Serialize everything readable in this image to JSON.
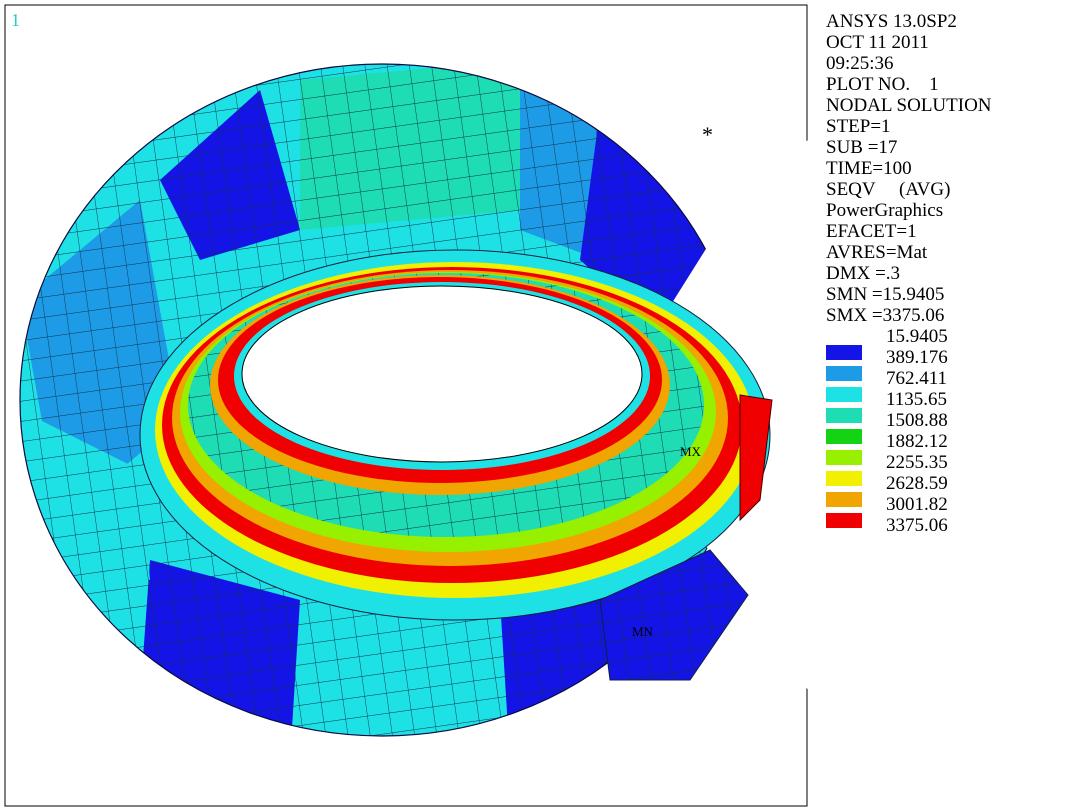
{
  "window": {
    "number": "1"
  },
  "info": [
    "ANSYS 13.0SP2",
    "OCT 11 2011",
    "09:25:36",
    "PLOT NO.    1",
    "NODAL SOLUTION",
    "STEP=1",
    "SUB =17",
    "TIME=100",
    "SEQV     (AVG)",
    "PowerGraphics",
    "EFACET=1",
    "AVRES=Mat",
    "DMX =.3",
    "SMN =15.9405",
    "SMX =3375.06"
  ],
  "legend": [
    {
      "label": "15.9405",
      "color": "#1414e6"
    },
    {
      "label": "389.176",
      "color": "#1e9be6"
    },
    {
      "label": "762.411",
      "color": "#1ee1e6"
    },
    {
      "label": "1135.65",
      "color": "#1edcb4"
    },
    {
      "label": "1508.88",
      "color": "#14d214"
    },
    {
      "label": "1882.12",
      "color": "#96f000"
    },
    {
      "label": "2255.35",
      "color": "#f0f000"
    },
    {
      "label": "2628.59",
      "color": "#f0a500"
    },
    {
      "label": "3001.82",
      "color": "#f00000"
    }
  ],
  "extra_legend_label": "3375.06",
  "markers": {
    "max": "MX",
    "min": "MN",
    "symbol": "*"
  }
}
